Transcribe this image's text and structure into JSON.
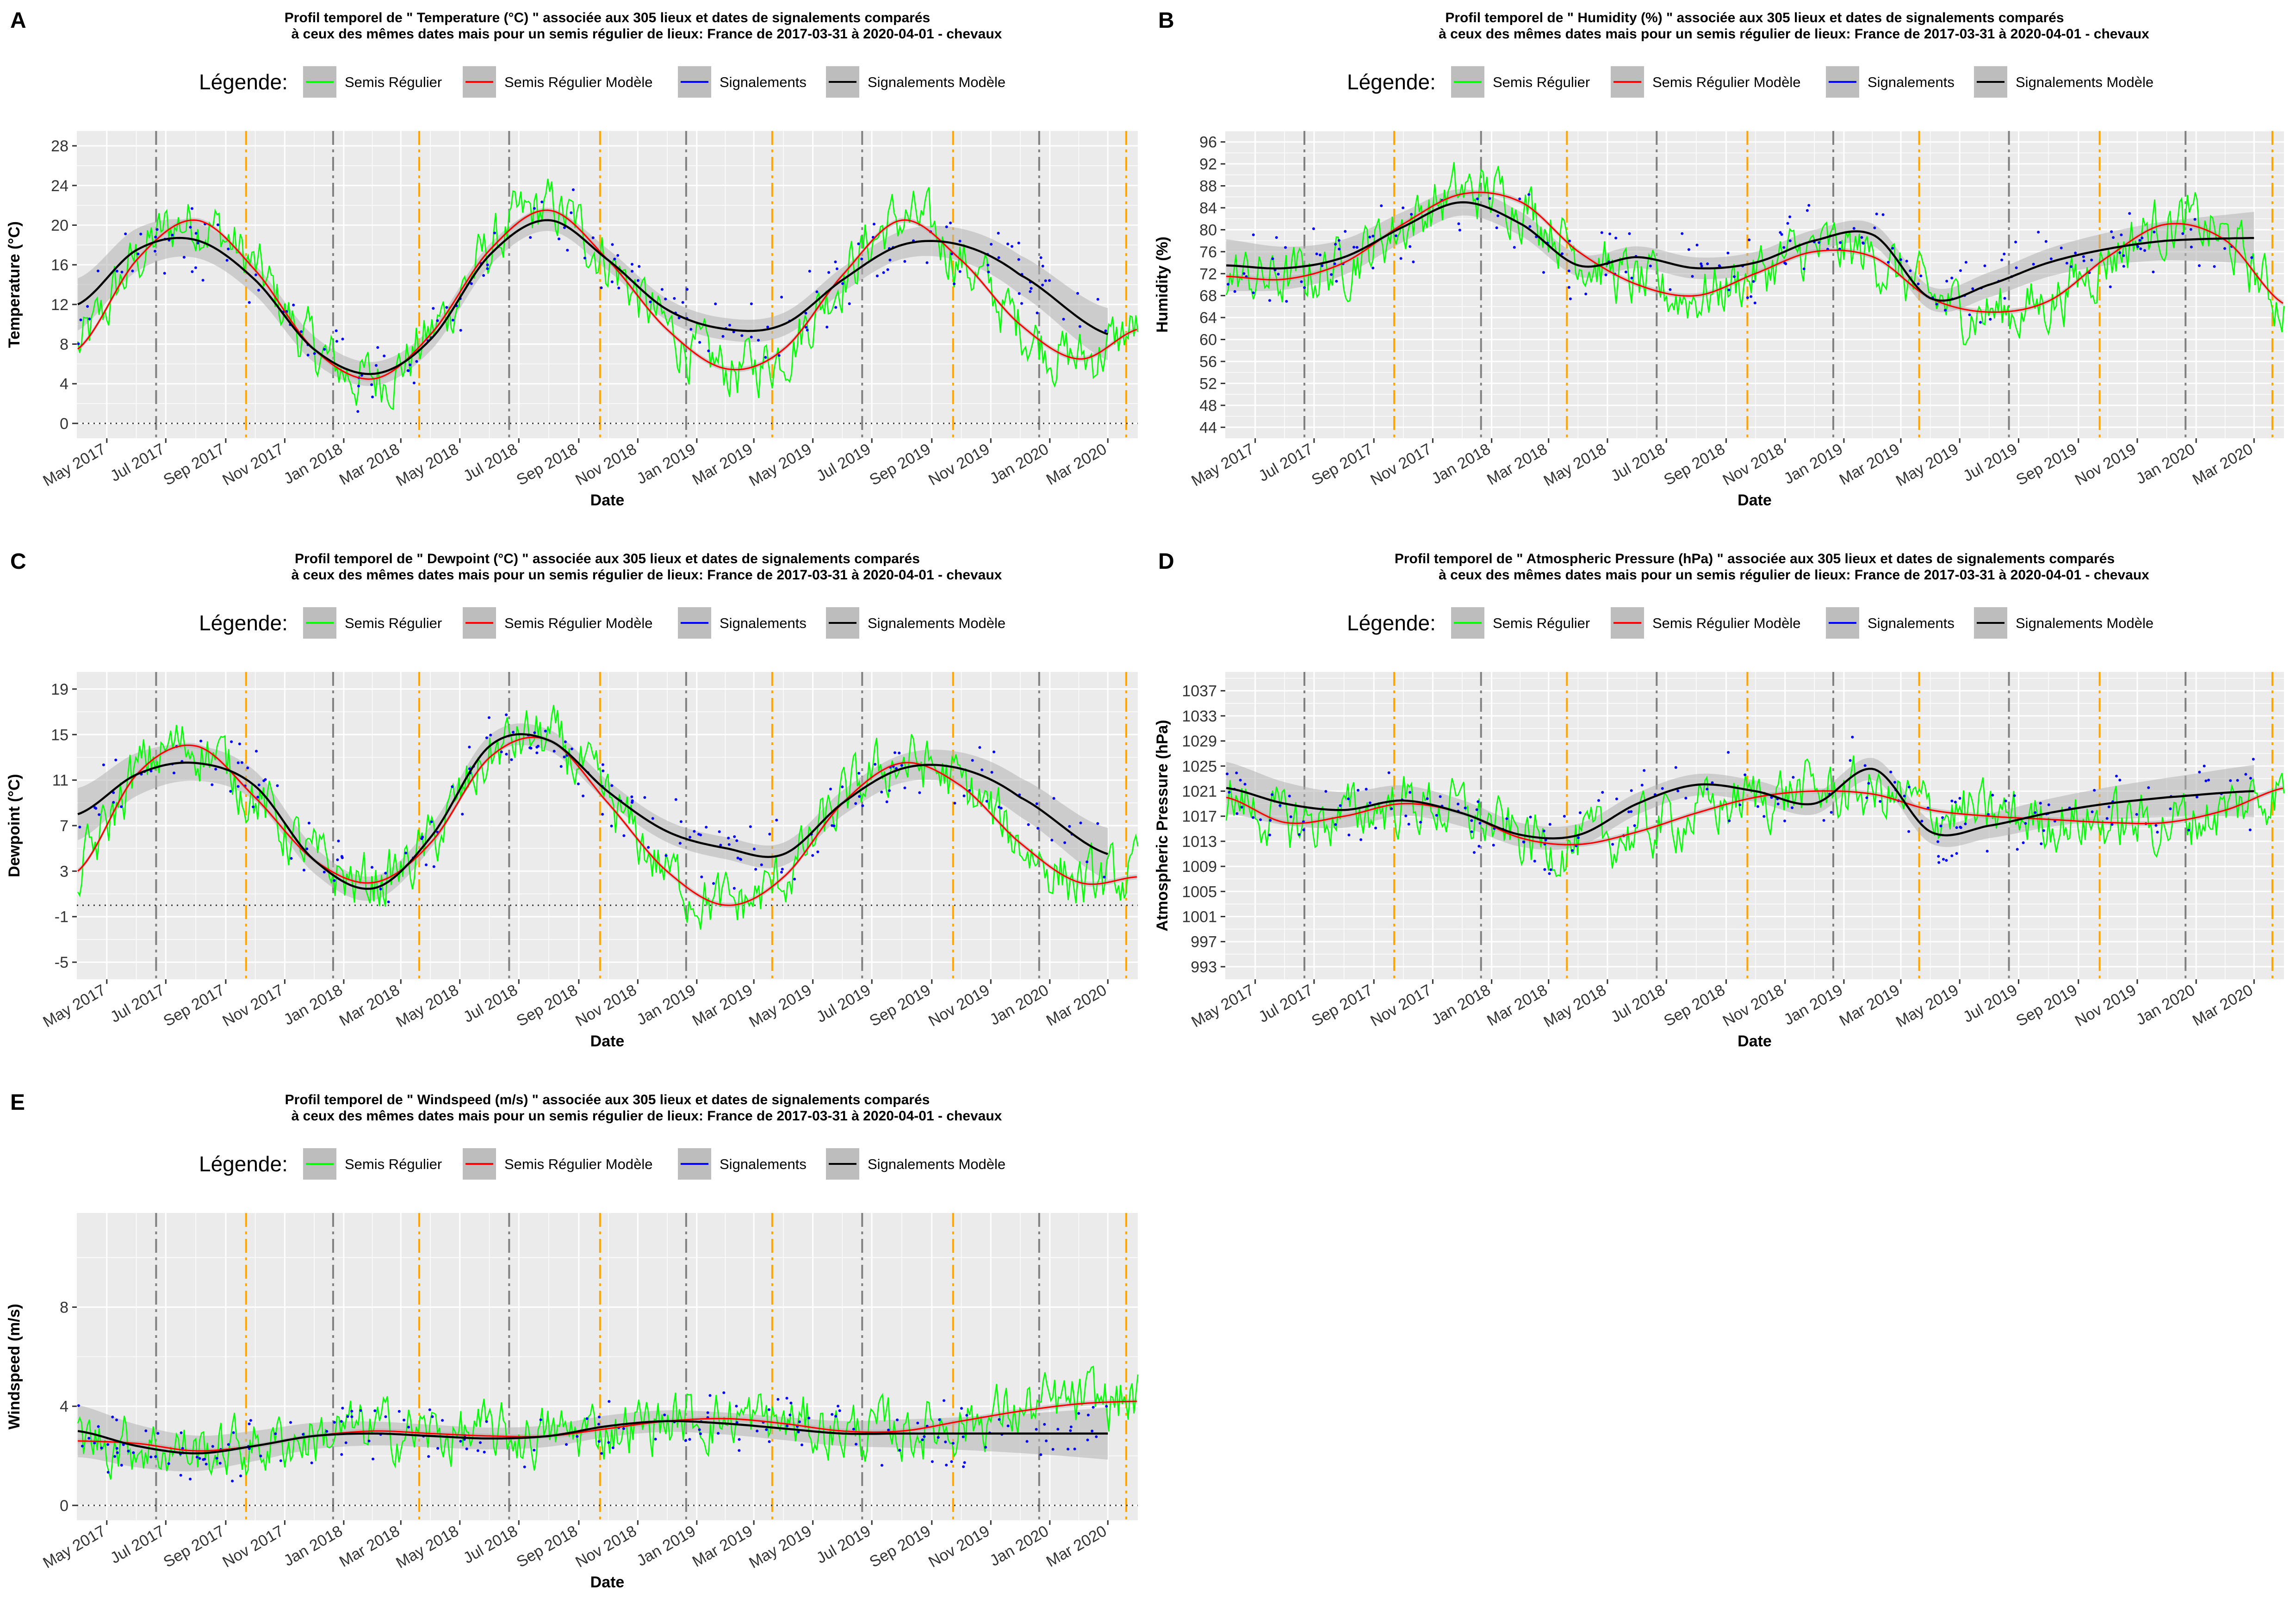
{
  "legend": {
    "title": "Légende:",
    "items": [
      {
        "label": "Semis Régulier",
        "color": "#00ff00"
      },
      {
        "label": "Semis Régulier Modèle",
        "color": "#ff0000"
      },
      {
        "label": "Signalements",
        "color": "#0000ff"
      },
      {
        "label": "Signalements Modèle",
        "color": "#000000"
      }
    ]
  },
  "colors": {
    "panel_background": "#ebebeb",
    "grid": "#ffffff",
    "raw_series": "#00ff00",
    "regular_model": "#ff0000",
    "reports": "#0000ff",
    "reports_model": "#000000",
    "ci_band": "#b3b3b3",
    "vline_grey": "#808080",
    "vline_orange": "#ffa500"
  },
  "chart_data": [
    {
      "type": "line",
      "panel": "A",
      "title_line1": "Profil temporel de \" Temperature (°C) \" associée aux  305  lieux et dates de signalements comparés",
      "title_line2": "à ceux des mêmes dates mais pour un semis régulier de lieux:  France  de 2017-03-31 à 2020-04-01 - chevaux",
      "xlabel": "Date",
      "ylabel": "Temperature (°C)",
      "xlim": [
        "2017-03-31",
        "2020-04-01"
      ],
      "ylim": [
        -1.5,
        29.5
      ],
      "yticks": [
        0,
        4,
        8,
        12,
        16,
        20,
        24,
        28
      ],
      "hline": 0,
      "series": [
        {
          "name": "Semis Régulier Modèle",
          "kind": "smooth",
          "x": [
            "2017-04-01",
            "2017-06-01",
            "2017-08-01",
            "2017-10-01",
            "2017-12-01",
            "2018-02-01",
            "2018-04-01",
            "2018-06-01",
            "2018-08-01",
            "2018-10-01",
            "2018-12-01",
            "2019-02-01",
            "2019-04-01",
            "2019-06-01",
            "2019-08-01",
            "2019-10-01",
            "2019-12-01",
            "2020-02-01",
            "2020-04-01"
          ],
          "y": [
            7.5,
            16.5,
            20.5,
            15.5,
            7.5,
            4.5,
            9.0,
            17.5,
            21.5,
            16.5,
            9.5,
            5.5,
            7.5,
            15.0,
            20.5,
            16.5,
            10.0,
            6.5,
            9.5
          ]
        },
        {
          "name": "Signalements Modèle",
          "kind": "smooth",
          "x": [
            "2017-04-01",
            "2017-06-01",
            "2017-08-01",
            "2017-10-01",
            "2017-12-01",
            "2018-02-01",
            "2018-04-01",
            "2018-06-01",
            "2018-08-01",
            "2018-10-01",
            "2018-12-01",
            "2019-02-01",
            "2019-04-01",
            "2019-06-01",
            "2019-08-01",
            "2019-10-01",
            "2019-12-01",
            "2020-03-01"
          ],
          "y": [
            12.0,
            17.5,
            18.5,
            14.5,
            7.5,
            5.0,
            8.5,
            17.0,
            20.5,
            16.5,
            11.5,
            9.5,
            10.0,
            14.5,
            18.0,
            18.0,
            15.0,
            9.0
          ]
        },
        {
          "name": "Semis Régulier",
          "kind": "noisy"
        },
        {
          "name": "Signalements",
          "kind": "points"
        }
      ]
    },
    {
      "type": "line",
      "panel": "B",
      "title_line1": "Profil temporel de \" Humidity (%) \" associée aux  305  lieux et dates de signalements comparés",
      "title_line2": "à ceux des mêmes dates mais pour un semis régulier de lieux:  France  de 2017-03-31 à 2020-04-01 - chevaux",
      "xlabel": "Date",
      "ylabel": "Humidity (%)",
      "xlim": [
        "2017-03-31",
        "2020-04-01"
      ],
      "ylim": [
        42,
        98
      ],
      "yticks": [
        44,
        48,
        52,
        56,
        60,
        64,
        68,
        72,
        76,
        80,
        84,
        88,
        92,
        96
      ],
      "series": [
        {
          "name": "Semis Régulier Modèle",
          "kind": "smooth",
          "x": [
            "2017-04-01",
            "2017-06-01",
            "2017-08-01",
            "2017-10-01",
            "2017-12-01",
            "2018-02-01",
            "2018-04-01",
            "2018-06-01",
            "2018-08-01",
            "2018-10-01",
            "2018-12-01",
            "2019-02-01",
            "2019-04-01",
            "2019-06-01",
            "2019-08-01",
            "2019-10-01",
            "2019-12-01",
            "2020-02-01",
            "2020-04-01"
          ],
          "y": [
            71.5,
            71.0,
            74.0,
            81.0,
            86.5,
            85.0,
            76.0,
            70.0,
            68.0,
            72.0,
            76.0,
            75.0,
            67.5,
            65.0,
            67.0,
            75.0,
            81.0,
            78.0,
            66.5
          ]
        },
        {
          "name": "Signalements Modèle",
          "kind": "smooth",
          "x": [
            "2017-04-01",
            "2017-06-01",
            "2017-08-01",
            "2017-10-01",
            "2017-12-01",
            "2018-02-01",
            "2018-04-01",
            "2018-06-01",
            "2018-08-01",
            "2018-10-01",
            "2018-12-01",
            "2019-02-01",
            "2019-04-01",
            "2019-06-01",
            "2019-08-01",
            "2019-10-01",
            "2019-12-01",
            "2020-03-01"
          ],
          "y": [
            73.5,
            73.0,
            75.0,
            80.5,
            85.0,
            81.0,
            73.5,
            75.0,
            73.0,
            74.0,
            78.0,
            79.0,
            67.5,
            70.0,
            74.0,
            76.5,
            78.0,
            78.5
          ]
        },
        {
          "name": "Semis Régulier",
          "kind": "noisy"
        },
        {
          "name": "Signalements",
          "kind": "points"
        }
      ]
    },
    {
      "type": "line",
      "panel": "C",
      "title_line1": "Profil temporel de \" Dewpoint (°C) \" associée aux  305  lieux et dates de signalements comparés",
      "title_line2": "à ceux des mêmes dates mais pour un semis régulier de lieux:  France  de 2017-03-31 à 2020-04-01 - chevaux",
      "xlabel": "Date",
      "ylabel": "Dewpoint (°C)",
      "xlim": [
        "2017-03-31",
        "2020-04-01"
      ],
      "ylim": [
        -6.5,
        20.5
      ],
      "yticks": [
        -5,
        -1,
        3,
        7,
        11,
        15,
        19
      ],
      "hline": 0,
      "series": [
        {
          "name": "Semis Régulier Modèle",
          "kind": "smooth",
          "x": [
            "2017-04-01",
            "2017-06-01",
            "2017-08-01",
            "2017-10-01",
            "2017-12-01",
            "2018-02-01",
            "2018-04-01",
            "2018-06-01",
            "2018-08-01",
            "2018-10-01",
            "2018-12-01",
            "2019-02-01",
            "2019-04-01",
            "2019-06-01",
            "2019-08-01",
            "2019-10-01",
            "2019-12-01",
            "2020-02-01",
            "2020-04-01"
          ],
          "y": [
            3.0,
            11.5,
            14.0,
            9.5,
            4.0,
            2.0,
            5.5,
            13.0,
            14.5,
            9.0,
            3.0,
            0.0,
            2.5,
            9.0,
            12.5,
            10.5,
            5.5,
            2.0,
            2.5
          ]
        },
        {
          "name": "Signalements Modèle",
          "kind": "smooth",
          "x": [
            "2017-04-01",
            "2017-06-01",
            "2017-08-01",
            "2017-10-01",
            "2017-12-01",
            "2018-02-01",
            "2018-04-01",
            "2018-06-01",
            "2018-08-01",
            "2018-10-01",
            "2018-12-01",
            "2019-02-01",
            "2019-04-01",
            "2019-06-01",
            "2019-08-01",
            "2019-10-01",
            "2019-12-01",
            "2020-03-01"
          ],
          "y": [
            8.0,
            11.5,
            12.5,
            10.5,
            4.0,
            1.5,
            6.0,
            14.0,
            14.5,
            10.0,
            6.5,
            5.0,
            4.5,
            9.0,
            12.0,
            12.0,
            9.5,
            4.5
          ]
        },
        {
          "name": "Semis Régulier",
          "kind": "noisy"
        },
        {
          "name": "Signalements",
          "kind": "points"
        }
      ]
    },
    {
      "type": "line",
      "panel": "D",
      "title_line1": "Profil temporel de \" Atmospheric Pressure (hPa) \" associée aux  305  lieux et dates de signalements comparés",
      "title_line2": "à ceux des mêmes dates mais pour un semis régulier de lieux:  France  de 2017-03-31 à 2020-04-01 - chevaux",
      "xlabel": "Date",
      "ylabel": "Atmospheric Pressure (hPa)",
      "xlim": [
        "2017-03-31",
        "2020-04-01"
      ],
      "ylim": [
        991,
        1040
      ],
      "yticks": [
        993,
        997,
        1001,
        1005,
        1009,
        1013,
        1017,
        1021,
        1025,
        1029,
        1033,
        1037
      ],
      "series": [
        {
          "name": "Semis Régulier Modèle",
          "kind": "smooth",
          "x": [
            "2017-04-01",
            "2017-06-01",
            "2017-08-01",
            "2017-10-01",
            "2017-12-01",
            "2018-02-01",
            "2018-04-01",
            "2018-06-01",
            "2018-08-01",
            "2018-10-01",
            "2018-12-01",
            "2019-02-01",
            "2019-04-01",
            "2019-06-01",
            "2019-08-01",
            "2019-10-01",
            "2019-12-01",
            "2020-02-01",
            "2020-04-01"
          ],
          "y": [
            1020.0,
            1016.0,
            1017.0,
            1019.0,
            1017.5,
            1013.5,
            1012.5,
            1014.5,
            1017.5,
            1020.0,
            1021.0,
            1020.5,
            1018.0,
            1017.0,
            1016.5,
            1016.0,
            1016.0,
            1018.0,
            1021.5
          ]
        },
        {
          "name": "Signalements Modèle",
          "kind": "smooth",
          "x": [
            "2017-04-01",
            "2017-06-01",
            "2017-08-01",
            "2017-10-01",
            "2017-12-01",
            "2018-02-01",
            "2018-04-01",
            "2018-06-01",
            "2018-08-01",
            "2018-10-01",
            "2018-12-01",
            "2019-02-01",
            "2019-04-01",
            "2019-06-01",
            "2019-08-01",
            "2019-10-01",
            "2019-12-01",
            "2020-03-01"
          ],
          "y": [
            1021.5,
            1019.0,
            1018.0,
            1019.5,
            1017.5,
            1014.0,
            1014.0,
            1019.0,
            1022.0,
            1021.0,
            1019.0,
            1024.5,
            1014.5,
            1015.5,
            1017.5,
            1019.0,
            1020.0,
            1021.0
          ]
        },
        {
          "name": "Semis Régulier",
          "kind": "noisy"
        },
        {
          "name": "Signalements",
          "kind": "points"
        }
      ]
    },
    {
      "type": "line",
      "panel": "E",
      "title_line1": "Profil temporel de \" Windspeed (m/s) \" associée aux  305  lieux et dates de signalements comparés",
      "title_line2": "à ceux des mêmes dates mais pour un semis régulier de lieux:  France  de 2017-03-31 à 2020-04-01 - chevaux",
      "xlabel": "Date",
      "ylabel": "Windspeed (m/s)",
      "xlim": [
        "2017-03-31",
        "2020-04-01"
      ],
      "ylim": [
        -0.6,
        11.8
      ],
      "yticks": [
        0,
        4,
        8
      ],
      "hline": 0,
      "series": [
        {
          "name": "Semis Régulier Modèle",
          "kind": "smooth",
          "x": [
            "2017-04-01",
            "2017-06-01",
            "2017-08-01",
            "2017-10-01",
            "2017-12-01",
            "2018-02-01",
            "2018-04-01",
            "2018-06-01",
            "2018-08-01",
            "2018-10-01",
            "2018-12-01",
            "2019-02-01",
            "2019-04-01",
            "2019-06-01",
            "2019-08-01",
            "2019-10-01",
            "2019-12-01",
            "2020-02-01",
            "2020-04-01"
          ],
          "y": [
            2.6,
            2.5,
            2.2,
            2.4,
            2.8,
            3.0,
            2.9,
            2.8,
            2.8,
            3.1,
            3.4,
            3.5,
            3.3,
            3.0,
            3.0,
            3.4,
            3.8,
            4.1,
            4.2
          ]
        },
        {
          "name": "Signalements Modèle",
          "kind": "smooth",
          "x": [
            "2017-04-01",
            "2017-06-01",
            "2017-08-01",
            "2017-10-01",
            "2017-12-01",
            "2018-02-01",
            "2018-04-01",
            "2018-06-01",
            "2018-08-01",
            "2018-10-01",
            "2018-12-01",
            "2019-02-01",
            "2019-04-01",
            "2019-06-01",
            "2019-08-01",
            "2019-10-01",
            "2019-12-01",
            "2020-03-01"
          ],
          "y": [
            3.0,
            2.4,
            2.1,
            2.4,
            2.8,
            2.9,
            2.8,
            2.7,
            2.8,
            3.2,
            3.4,
            3.3,
            3.1,
            2.9,
            2.9,
            2.9,
            2.9,
            2.9
          ]
        },
        {
          "name": "Semis Régulier",
          "kind": "noisy"
        },
        {
          "name": "Signalements",
          "kind": "points"
        }
      ]
    }
  ],
  "x_axis": {
    "ticks": [
      {
        "date": "2017-05-01",
        "label": "May 2017"
      },
      {
        "date": "2017-07-01",
        "label": "Jul 2017"
      },
      {
        "date": "2017-09-01",
        "label": "Sep 2017"
      },
      {
        "date": "2017-11-01",
        "label": "Nov 2017"
      },
      {
        "date": "2018-01-01",
        "label": "Jan 2018"
      },
      {
        "date": "2018-03-01",
        "label": "Mar 2018"
      },
      {
        "date": "2018-05-01",
        "label": "May 2018"
      },
      {
        "date": "2018-07-01",
        "label": "Jul 2018"
      },
      {
        "date": "2018-09-01",
        "label": "Sep 2018"
      },
      {
        "date": "2018-11-01",
        "label": "Nov 2018"
      },
      {
        "date": "2019-01-01",
        "label": "Jan 2019"
      },
      {
        "date": "2019-03-01",
        "label": "Mar 2019"
      },
      {
        "date": "2019-05-01",
        "label": "May 2019"
      },
      {
        "date": "2019-07-01",
        "label": "Jul 2019"
      },
      {
        "date": "2019-09-01",
        "label": "Sep 2019"
      },
      {
        "date": "2019-11-01",
        "label": "Nov 2019"
      },
      {
        "date": "2020-01-01",
        "label": "Jan 2020"
      },
      {
        "date": "2020-03-01",
        "label": "Mar 2020"
      }
    ]
  },
  "reference_lines": {
    "grey_dashed": [
      "2017-06-21",
      "2017-12-21",
      "2018-06-21",
      "2018-12-21",
      "2019-06-21",
      "2019-12-21"
    ],
    "orange_dashed": [
      "2017-09-22",
      "2018-03-20",
      "2018-09-23",
      "2019-03-20",
      "2019-09-23",
      "2020-03-20"
    ]
  }
}
